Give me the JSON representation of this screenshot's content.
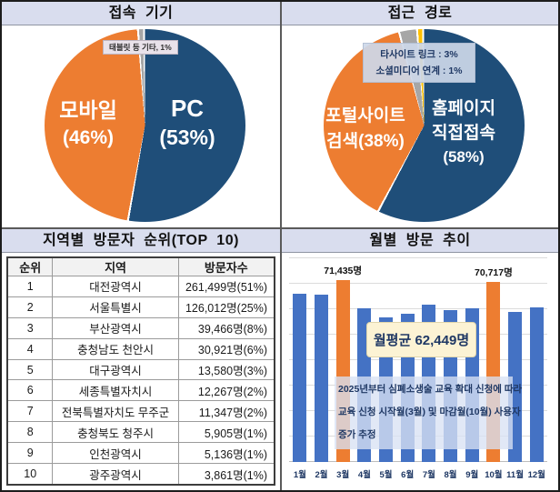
{
  "chart_data": [
    {
      "id": "device",
      "type": "pie",
      "title": "접속 기기",
      "legend_position": "none",
      "slices": [
        {
          "name": "PC",
          "value": 53,
          "color": "#1F4E79",
          "line1": "PC",
          "line2": "(53%)"
        },
        {
          "name": "모바일",
          "value": 46,
          "color": "#ED7D31",
          "line1": "모바일",
          "line2": "(46%)"
        },
        {
          "name": "태블릿 등 기타",
          "value": 1,
          "color": "#A6A6A6",
          "callout_label": "태블릿 등 기타, 1%"
        }
      ]
    },
    {
      "id": "route",
      "type": "pie",
      "title": "접근 경로",
      "legend_position": "none",
      "slices": [
        {
          "name": "홈페이지 직접접속",
          "value": 58,
          "color": "#1F4E79",
          "line1": "홈페이지",
          "line2": "직접접속",
          "line3": "(58%)"
        },
        {
          "name": "포털사이트 검색",
          "value": 38,
          "color": "#ED7D31",
          "line1": "포털사이트",
          "line2": "검색(38%)"
        },
        {
          "name": "타사이트 링크",
          "value": 3,
          "color": "#A6A6A6",
          "callout_label": "타사이트 링크 : 3%"
        },
        {
          "name": "소셜미디어 연계",
          "value": 1,
          "color": "#FFC000",
          "callout_label": "소셜미디어 연계 : 1%"
        }
      ]
    },
    {
      "id": "region_table",
      "type": "table",
      "title": "지역별 방문자 순위(TOP 10)",
      "columns": [
        "순위",
        "지역",
        "방문자수"
      ],
      "rows": [
        [
          "1",
          "대전광역시",
          "261,499명(51%)"
        ],
        [
          "2",
          "서울특별시",
          "126,012명(25%)"
        ],
        [
          "3",
          "부산광역시",
          "39,466명(8%)"
        ],
        [
          "4",
          "충청남도 천안시",
          "30,921명(6%)"
        ],
        [
          "5",
          "대구광역시",
          "13,580명(3%)"
        ],
        [
          "6",
          "세종특별자치시",
          "12,267명(2%)"
        ],
        [
          "7",
          "전북특별자치도 무주군",
          "11,347명(2%)"
        ],
        [
          "8",
          "충청북도 청주시",
          "5,905명(1%)"
        ],
        [
          "9",
          "인천광역시",
          "5,136명(1%)"
        ],
        [
          "10",
          "광주광역시",
          "3,861명(1%)"
        ]
      ]
    },
    {
      "id": "monthly",
      "type": "bar",
      "title": "월별 방문 추이",
      "categories": [
        "1월",
        "2월",
        "3월",
        "4월",
        "5월",
        "6월",
        "7월",
        "8월",
        "9월",
        "10월",
        "11월",
        "12월"
      ],
      "values": [
        65900,
        65800,
        71435,
        60400,
        56800,
        58300,
        61900,
        59700,
        60400,
        70717,
        59000,
        60800
      ],
      "values_note": "3월=71,435 and 10월=70,717 are labeled on the chart; other months estimated from bar heights",
      "bar_labels": {
        "3월": "71,435명",
        "10월": "70,717명"
      },
      "highlight_indices": [
        2,
        9
      ],
      "colors": {
        "bar": "#4472C4",
        "highlight": "#ED7D31"
      },
      "xlabel": "",
      "ylabel": "",
      "ylim": [
        0,
        80000
      ],
      "gridline_step": 10000,
      "grid": true,
      "legend_position": "none",
      "annotations": {
        "average_box": "월평균 62,449명",
        "note_lines": [
          "2025년부터 심폐소생술 교육 확대 신청에 따라",
          "교육 신청 시작월(3월) 및 마감월(10월) 사용자",
          "증가 추정"
        ]
      }
    }
  ]
}
